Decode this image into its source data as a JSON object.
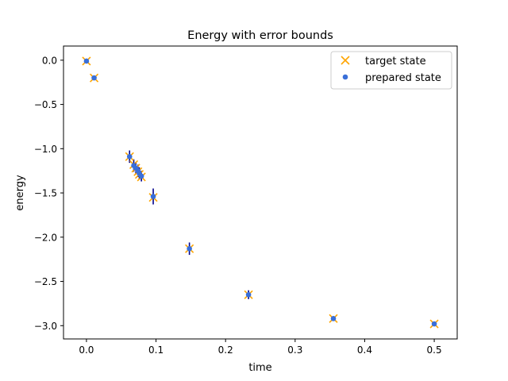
{
  "chart_data": {
    "type": "scatter",
    "title": "Energy with error bounds",
    "xlabel": "time",
    "ylabel": "energy",
    "xlim": [
      -0.033,
      0.533
    ],
    "ylim": [
      -3.15,
      0.16
    ],
    "xticks": [
      0.0,
      0.1,
      0.2,
      0.3,
      0.4,
      0.5
    ],
    "xtick_labels": [
      "0.0",
      "0.1",
      "0.2",
      "0.3",
      "0.4",
      "0.5"
    ],
    "yticks": [
      0.0,
      -0.5,
      -1.0,
      -1.5,
      -2.0,
      -2.5,
      -3.0
    ],
    "ytick_labels": [
      "0.0",
      "−0.5",
      "−1.0",
      "−1.5",
      "−2.0",
      "−2.5",
      "−3.0"
    ],
    "grid": false,
    "legend_position": "upper right",
    "series": [
      {
        "name": "target state",
        "marker": "x",
        "color": "#FFA500",
        "x": [
          0.0,
          0.011,
          0.062,
          0.068,
          0.071,
          0.074,
          0.076,
          0.079,
          0.096,
          0.148,
          0.233,
          0.355,
          0.5
        ],
        "y": [
          -0.01,
          -0.2,
          -1.09,
          -1.18,
          -1.22,
          -1.26,
          -1.29,
          -1.32,
          -1.55,
          -2.13,
          -2.65,
          -2.92,
          -2.98
        ]
      },
      {
        "name": "prepared state",
        "marker": "o",
        "color": "#3A6FD8",
        "x": [
          0.0,
          0.011,
          0.062,
          0.068,
          0.071,
          0.074,
          0.076,
          0.079,
          0.096,
          0.148,
          0.233,
          0.355,
          0.5
        ],
        "y": [
          -0.01,
          -0.2,
          -1.09,
          -1.19,
          -1.22,
          -1.25,
          -1.28,
          -1.31,
          -1.54,
          -2.13,
          -2.65,
          -2.92,
          -2.98
        ],
        "error_bounds": [
          0.01,
          0.01,
          0.07,
          0.07,
          0.07,
          0.07,
          0.07,
          0.06,
          0.09,
          0.07,
          0.05,
          0.02,
          0.02
        ],
        "error_color": "#00008B"
      }
    ]
  }
}
